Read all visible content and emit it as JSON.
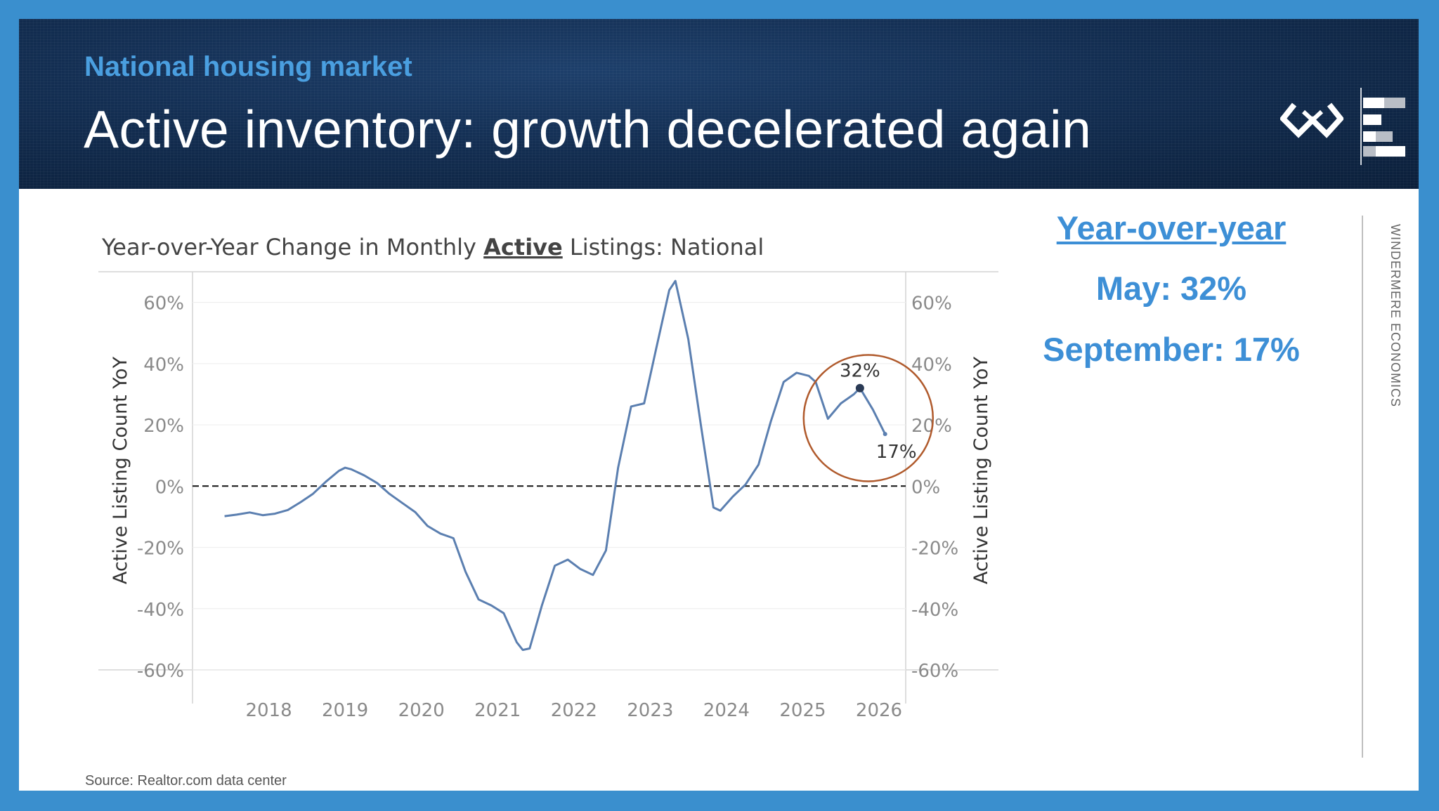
{
  "header": {
    "kicker": "National housing market",
    "title": "Active inventory: growth decelerated again"
  },
  "chart_data": {
    "type": "line",
    "title_prefix": "Year-over-Year Change in Monthly ",
    "title_emphasis": "Active",
    "title_suffix": " Listings: National",
    "ylabel_left": "Active Listing Count YoY",
    "ylabel_right": "Active Listing Count YoY",
    "ylim": [
      -60,
      70
    ],
    "xlim": [
      2017.0,
      2026.35
    ],
    "y_ticks": [
      60,
      40,
      20,
      0,
      -20,
      -40,
      -60
    ],
    "y_tick_labels": [
      "60%",
      "40%",
      "20%",
      "0%",
      "-20%",
      "-40%",
      "-60%"
    ],
    "x_ticks": [
      2018,
      2019,
      2020,
      2021,
      2022,
      2023,
      2024,
      2025,
      2026
    ],
    "x_tick_labels": [
      "2018",
      "2019",
      "2020",
      "2021",
      "2022",
      "2023",
      "2024",
      "2025",
      "2026"
    ],
    "reference_line": 0,
    "series": [
      {
        "color": "#5b7fb0",
        "points": [
          [
            2017.42,
            -9.8
          ],
          [
            2017.58,
            -9.3
          ],
          [
            2017.75,
            -8.6
          ],
          [
            2017.92,
            -9.5
          ],
          [
            2018.08,
            -9.0
          ],
          [
            2018.25,
            -7.8
          ],
          [
            2018.42,
            -5.2
          ],
          [
            2018.58,
            -2.5
          ],
          [
            2018.75,
            1.5
          ],
          [
            2018.92,
            5.0
          ],
          [
            2019.0,
            6.0
          ],
          [
            2019.08,
            5.5
          ],
          [
            2019.25,
            3.5
          ],
          [
            2019.42,
            1.0
          ],
          [
            2019.58,
            -2.5
          ],
          [
            2019.75,
            -5.5
          ],
          [
            2019.92,
            -8.5
          ],
          [
            2020.08,
            -13.0
          ],
          [
            2020.25,
            -15.5
          ],
          [
            2020.42,
            -17.0
          ],
          [
            2020.58,
            -28.0
          ],
          [
            2020.75,
            -37.0
          ],
          [
            2020.92,
            -39.0
          ],
          [
            2021.08,
            -41.5
          ],
          [
            2021.25,
            -51.0
          ],
          [
            2021.33,
            -53.5
          ],
          [
            2021.42,
            -53.0
          ],
          [
            2021.58,
            -39.0
          ],
          [
            2021.75,
            -26.0
          ],
          [
            2021.92,
            -24.0
          ],
          [
            2022.08,
            -27.0
          ],
          [
            2022.25,
            -29.0
          ],
          [
            2022.42,
            -21.0
          ],
          [
            2022.58,
            6.0
          ],
          [
            2022.75,
            26.0
          ],
          [
            2022.92,
            27.0
          ],
          [
            2023.08,
            45.0
          ],
          [
            2023.25,
            64.0
          ],
          [
            2023.33,
            67.0
          ],
          [
            2023.5,
            48.0
          ],
          [
            2023.67,
            19.0
          ],
          [
            2023.83,
            -7.0
          ],
          [
            2023.92,
            -8.0
          ],
          [
            2024.08,
            -3.5
          ],
          [
            2024.25,
            0.5
          ],
          [
            2024.42,
            7.0
          ],
          [
            2024.58,
            21.0
          ],
          [
            2024.75,
            34.0
          ],
          [
            2024.92,
            37.0
          ],
          [
            2025.08,
            36.0
          ],
          [
            2025.17,
            34.0
          ],
          [
            2025.33,
            22.0
          ],
          [
            2025.5,
            27.0
          ],
          [
            2025.67,
            30.0
          ],
          [
            2025.75,
            32.0
          ],
          [
            2025.92,
            25.0
          ],
          [
            2026.08,
            17.0
          ]
        ]
      }
    ],
    "annotations": [
      {
        "label": "32%",
        "x": 2025.75,
        "y": 32
      },
      {
        "label": "17%",
        "x": 2026.08,
        "y": 17
      }
    ],
    "highlight_color": "#b05a2c"
  },
  "stats": {
    "heading": "Year-over-year",
    "may": "May: 32%",
    "september": "September: 17%"
  },
  "sidebar_label": "WINDERMERE ECONOMICS",
  "source": "Source: Realtor.com data center"
}
